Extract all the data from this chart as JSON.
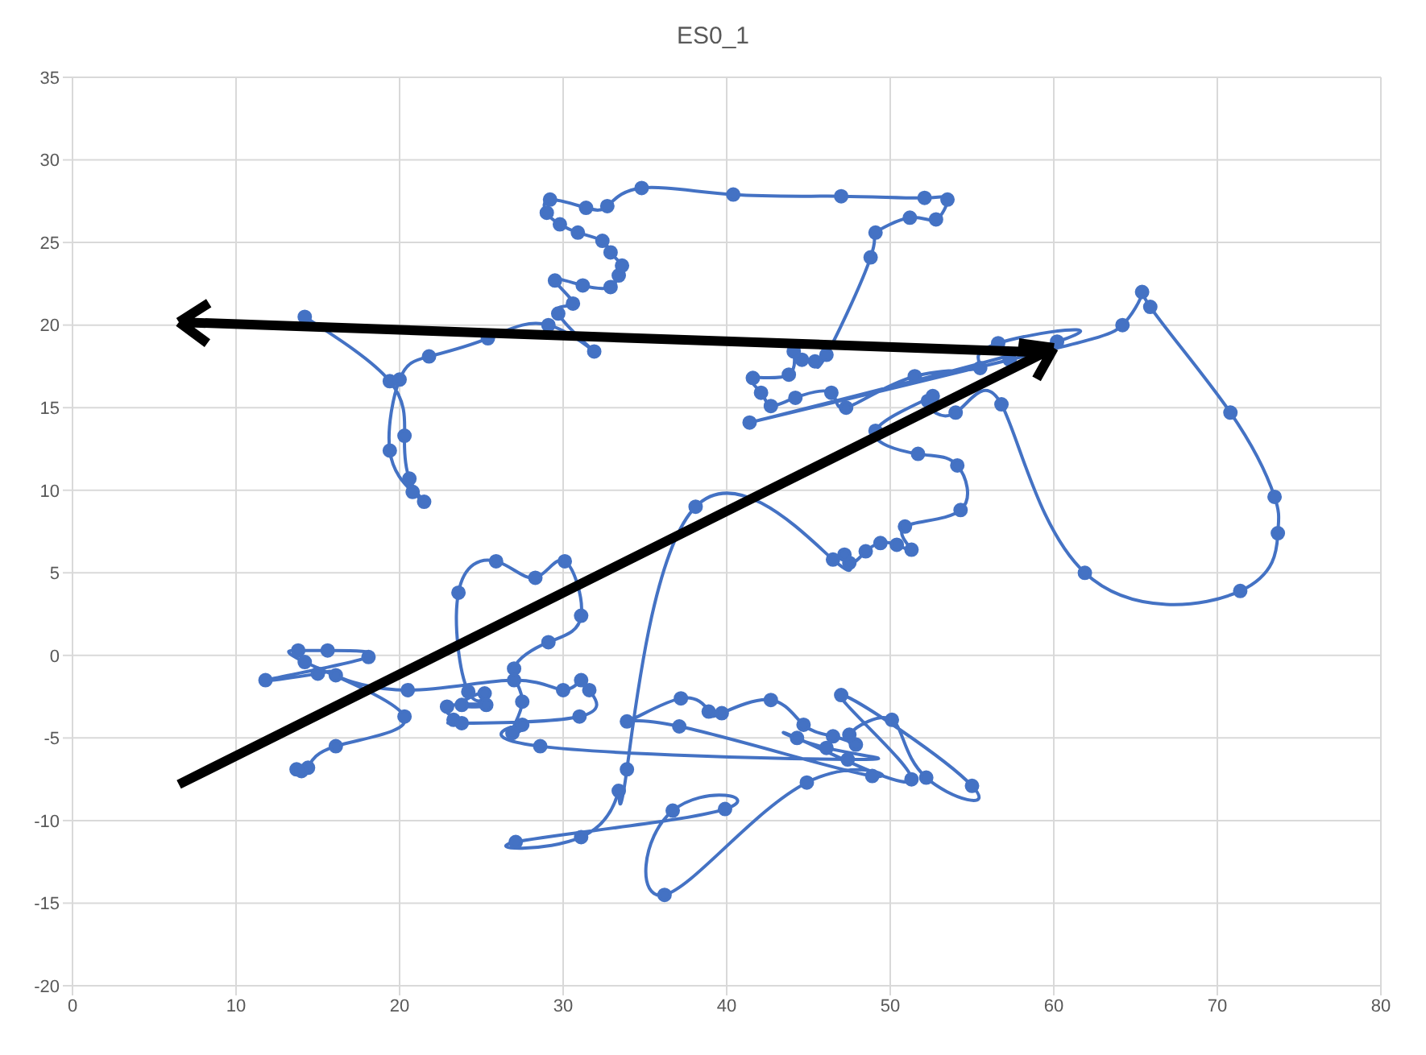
{
  "chart_data": {
    "type": "line",
    "title": "ES0_1",
    "marker": "circle",
    "line_style": "solid",
    "grid": true,
    "color": "#4472c4",
    "xlim": [
      0,
      80
    ],
    "ylim": [
      -20,
      35
    ],
    "xticks": [
      0,
      10,
      20,
      30,
      40,
      50,
      60,
      70,
      80
    ],
    "yticks": [
      -20,
      -15,
      -10,
      -5,
      0,
      5,
      10,
      15,
      20,
      25,
      30,
      35
    ],
    "x": [
      14.2,
      19.4,
      20.3,
      20.6,
      21.5,
      20.8,
      19.4,
      20.0,
      21.8,
      25.4,
      29.1,
      31.9,
      29.7,
      30.6,
      29.5,
      31.2,
      32.9,
      33.4,
      33.6,
      32.9,
      32.4,
      30.9,
      29.8,
      29.0,
      29.2,
      31.4,
      32.7,
      34.8,
      40.4,
      47.0,
      52.1,
      53.5,
      52.8,
      51.2,
      49.1,
      48.8,
      46.1,
      45.4,
      44.6,
      44.1,
      43.8,
      41.6,
      42.1,
      42.7,
      44.2,
      46.4,
      47.3,
      51.5,
      55.5,
      56.6,
      60.2,
      41.4,
      57.3,
      64.2,
      65.4,
      65.9,
      70.8,
      73.5,
      73.7,
      71.4,
      61.9,
      56.8,
      54.0,
      52.3,
      52.6,
      49.1,
      51.7,
      54.1,
      54.3,
      50.9,
      51.3,
      50.4,
      49.4,
      48.5,
      47.5,
      47.2,
      46.5,
      38.1,
      33.9,
      33.4,
      31.1,
      27.1,
      39.9,
      36.7,
      36.2,
      44.9,
      48.9,
      37.1,
      33.9,
      37.2,
      38.9,
      39.7,
      42.7,
      44.7,
      46.5,
      47.9,
      47.5,
      50.1,
      52.2,
      55.0,
      47.0,
      51.3,
      44.3,
      46.1,
      47.4,
      28.6,
      27.5,
      26.9,
      27.5,
      27.0,
      29.1,
      31.1,
      30.1,
      28.3,
      25.9,
      23.6,
      24.2,
      25.2,
      23.8,
      25.3,
      22.9,
      23.3,
      23.8,
      31.0,
      31.6,
      31.1,
      30.0,
      27.0,
      20.5,
      16.1,
      15.0,
      11.8,
      18.1,
      15.6,
      13.8,
      14.2,
      20.3,
      16.1,
      14.4,
      13.7,
      14.0
    ],
    "values": [
      20.5,
      16.6,
      13.3,
      10.7,
      9.3,
      9.9,
      12.4,
      16.7,
      18.1,
      19.2,
      20.0,
      18.4,
      20.7,
      21.3,
      22.7,
      22.4,
      22.3,
      23.0,
      23.6,
      24.4,
      25.1,
      25.6,
      26.1,
      26.8,
      27.6,
      27.1,
      27.2,
      28.3,
      27.9,
      27.8,
      27.7,
      27.6,
      26.4,
      26.5,
      25.6,
      24.1,
      18.2,
      17.8,
      17.9,
      18.4,
      17.0,
      16.8,
      15.9,
      15.1,
      15.6,
      15.9,
      15.0,
      16.9,
      17.4,
      18.9,
      19.0,
      14.1,
      17.9,
      20.0,
      22.0,
      21.1,
      14.7,
      9.6,
      7.4,
      3.9,
      5.0,
      15.2,
      14.7,
      15.4,
      15.7,
      13.6,
      12.2,
      11.5,
      8.8,
      7.8,
      6.4,
      6.7,
      6.8,
      6.3,
      5.6,
      6.1,
      5.8,
      9.0,
      -6.9,
      -8.2,
      -11.0,
      -11.3,
      -9.3,
      -9.4,
      -14.5,
      -7.7,
      -7.3,
      -4.3,
      -4.0,
      -2.6,
      -3.4,
      -3.5,
      -2.7,
      -4.2,
      -4.9,
      -5.4,
      -4.8,
      -3.9,
      -7.4,
      -7.9,
      -2.4,
      -7.5,
      -5.0,
      -5.6,
      -6.3,
      -5.5,
      -4.2,
      -4.7,
      -2.8,
      -0.8,
      0.8,
      2.4,
      5.7,
      4.7,
      5.7,
      3.8,
      -2.2,
      -2.3,
      -3.0,
      -3.0,
      -3.1,
      -3.9,
      -4.1,
      -3.7,
      -2.1,
      -1.5,
      -2.1,
      -1.5,
      -2.1,
      -1.2,
      -1.1,
      -1.5,
      -0.1,
      0.3,
      0.3,
      -0.4,
      -3.7,
      -5.5,
      -6.8,
      -6.9,
      -7.0
    ]
  }
}
